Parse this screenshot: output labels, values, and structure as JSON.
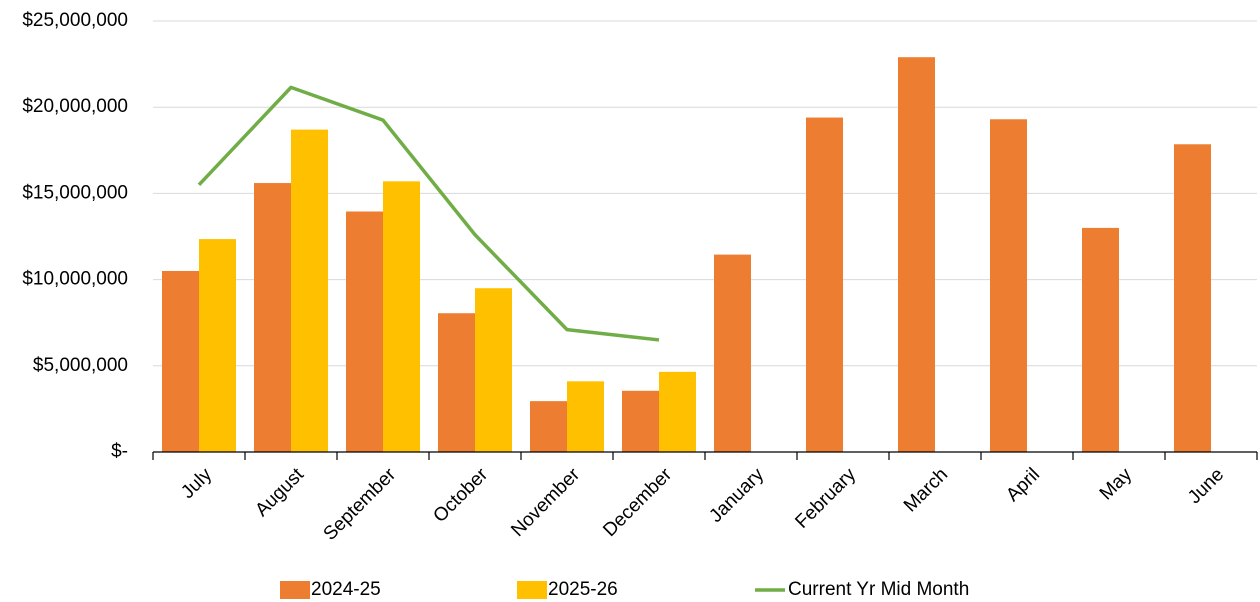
{
  "chart_data": {
    "type": "bar",
    "categories": [
      "July",
      "August",
      "September",
      "October",
      "November",
      "December",
      "January",
      "February",
      "March",
      "April",
      "May",
      "June"
    ],
    "series": [
      {
        "name": "2024-25",
        "type": "bar",
        "color": "#ED7D31",
        "values": [
          10500000,
          15600000,
          13950000,
          8050000,
          2950000,
          3550000,
          11450000,
          19400000,
          22900000,
          19300000,
          13000000,
          17850000
        ]
      },
      {
        "name": "2025-26",
        "type": "bar",
        "color": "#FFC000",
        "values": [
          12350000,
          18700000,
          15700000,
          9500000,
          4100000,
          4650000,
          null,
          null,
          null,
          null,
          null,
          null
        ]
      },
      {
        "name": "Current Yr Mid Month",
        "type": "line",
        "color": "#70AD47",
        "values": [
          15500000,
          21150000,
          19250000,
          12600000,
          7100000,
          6500000,
          null,
          null,
          null,
          null,
          null,
          null
        ]
      }
    ],
    "ylim": [
      0,
      25000000
    ],
    "yticks": [
      {
        "value": 0,
        "label": "$-"
      },
      {
        "value": 5000000,
        "label": "$5,000,000"
      },
      {
        "value": 10000000,
        "label": "$10,000,000"
      },
      {
        "value": 15000000,
        "label": "$15,000,000"
      },
      {
        "value": 20000000,
        "label": "$20,000,000"
      },
      {
        "value": 25000000,
        "label": "$25,000,000"
      }
    ],
    "grid": true,
    "legend": "bottom"
  }
}
